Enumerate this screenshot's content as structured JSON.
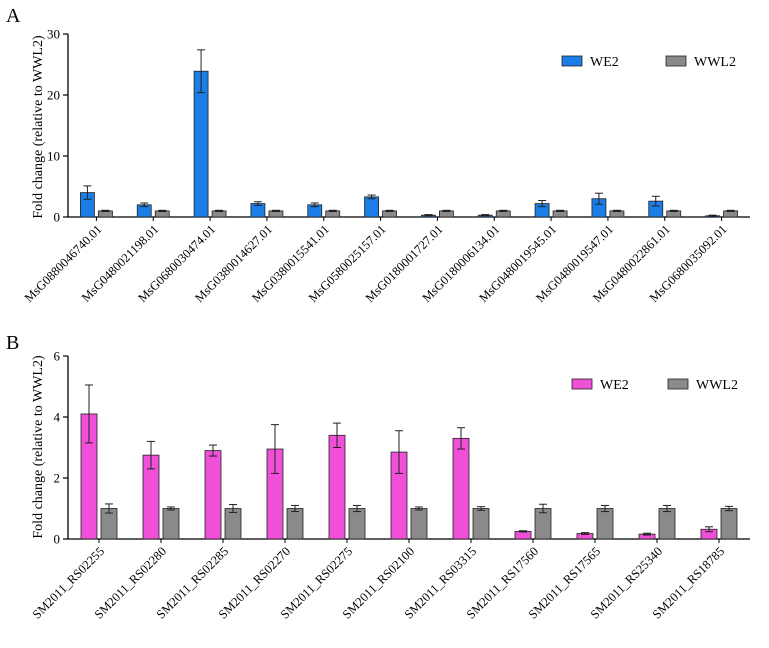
{
  "chart_data": [
    {
      "type": "bar",
      "panel_label": "A",
      "ylabel": "Fold change (relative to WWL2)",
      "ylim": [
        0,
        30
      ],
      "yticks": [
        "0",
        "10",
        "20",
        "30"
      ],
      "legend_position": "top-right",
      "categories": [
        "MsG0880046740.01",
        "MsG0480021198.01",
        "MsG0680030474.01",
        "MsG0380014627.01",
        "MsG0380015541.01",
        "MsG0580025157.01",
        "MsG0180001727.01",
        "MsG0180006134.01",
        "MsG0480019545.01",
        "MsG0480019547.01",
        "MsG0480022861.01",
        "MsG0680035092.01"
      ],
      "series": [
        {
          "name": "WE2",
          "color": "#1a7ee6",
          "values": [
            4.0,
            2.0,
            23.9,
            2.2,
            2.0,
            3.3,
            0.3,
            0.3,
            2.2,
            3.0,
            2.6,
            0.2
          ],
          "errors": [
            1.1,
            0.3,
            3.5,
            0.3,
            0.3,
            0.3,
            0.1,
            0.1,
            0.5,
            0.9,
            0.8,
            0.1
          ]
        },
        {
          "name": "WWL2",
          "color": "#8a8a8a",
          "values": [
            1.0,
            1.0,
            1.0,
            1.0,
            1.0,
            1.0,
            1.0,
            1.0,
            1.0,
            1.0,
            1.0,
            1.0
          ],
          "errors": [
            0.1,
            0.1,
            0.1,
            0.1,
            0.1,
            0.1,
            0.1,
            0.1,
            0.1,
            0.1,
            0.1,
            0.1
          ]
        }
      ]
    },
    {
      "type": "bar",
      "panel_label": "B",
      "ylabel": "Fold change (relative to WWL2)",
      "ylim": [
        0,
        6
      ],
      "yticks": [
        "0",
        "2",
        "4",
        "6"
      ],
      "legend_position": "top-right",
      "categories": [
        "SM2011_RS02255",
        "SM2011_RS02280",
        "SM2011_RS02285",
        "SM2011_RS02270",
        "SM2011_RS02275",
        "SM2011_RS02100",
        "SM2011_RS03315",
        "SM2011_RS17560",
        "SM2011_RS17565",
        "SM2011_RS25340",
        "SM2011_RS18785"
      ],
      "series": [
        {
          "name": "WE2",
          "color": "#f04fd8",
          "values": [
            4.1,
            2.75,
            2.9,
            2.95,
            3.4,
            2.85,
            3.3,
            0.25,
            0.18,
            0.16,
            0.32
          ],
          "errors": [
            0.95,
            0.45,
            0.18,
            0.8,
            0.4,
            0.7,
            0.35,
            0.02,
            0.03,
            0.03,
            0.08
          ]
        },
        {
          "name": "WWL2",
          "color": "#8a8a8a",
          "values": [
            1.0,
            1.0,
            1.0,
            1.0,
            1.0,
            1.0,
            1.0,
            1.0,
            1.0,
            1.0,
            1.0
          ],
          "errors": [
            0.15,
            0.05,
            0.13,
            0.1,
            0.1,
            0.05,
            0.06,
            0.14,
            0.1,
            0.1,
            0.07
          ]
        }
      ]
    }
  ]
}
